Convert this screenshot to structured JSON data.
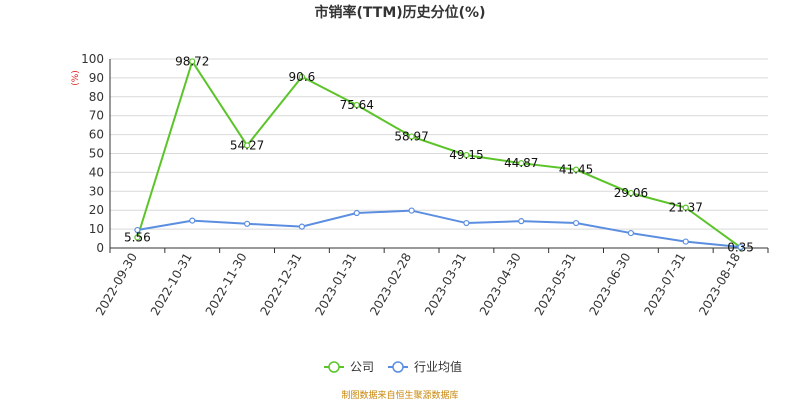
{
  "chart_data": {
    "type": "line",
    "title": "市销率(TTM)历史分位(%)",
    "ylabel": "(%)",
    "ylim": [
      0,
      100
    ],
    "yticks": [
      0,
      10,
      20,
      30,
      40,
      50,
      60,
      70,
      80,
      90,
      100
    ],
    "grid": true,
    "legend_position": "bottom-center",
    "categories": [
      "2022-09-30",
      "2022-10-31",
      "2022-11-30",
      "2022-12-31",
      "2023-01-31",
      "2023-02-28",
      "2023-03-31",
      "2023-04-30",
      "2023-05-31",
      "2023-06-30",
      "2023-07-31",
      "2023-08-18"
    ],
    "series": [
      {
        "name": "公司",
        "color": "#5bc429",
        "values": [
          5.56,
          98.72,
          54.27,
          90.6,
          75.64,
          58.97,
          49.15,
          44.87,
          41.45,
          29.06,
          21.37,
          0.35
        ],
        "labels": [
          "5.56",
          "98.72",
          "54.27",
          "90.6",
          "75.64",
          "58.97",
          "49.15",
          "44.87",
          "41.45",
          "29.06",
          "21.37",
          "0.35"
        ]
      },
      {
        "name": "行业均值",
        "color": "#5b8ee0",
        "values": [
          9.5,
          14.5,
          12.8,
          11.3,
          18.5,
          19.8,
          13.2,
          14.2,
          13.2,
          7.9,
          3.4,
          0.5
        ]
      }
    ],
    "source": "制图数据来自恒生聚源数据库"
  }
}
